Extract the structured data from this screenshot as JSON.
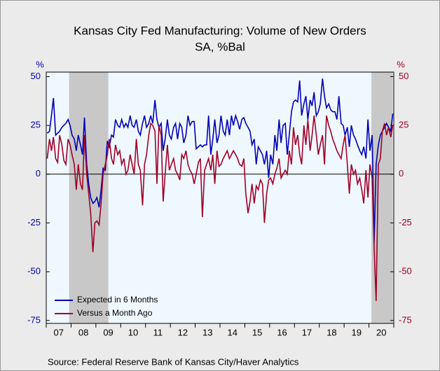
{
  "chart_data": {
    "type": "line",
    "title": "Kansas City Fed Manufacturing: Volume of New Orders",
    "subtitle": "SA, %Bal",
    "y_unit": "%",
    "y2_unit": "%",
    "source": "Source:  Federal Reserve Bank of Kansas City/Haver Analytics",
    "xlim": [
      2007,
      2021
    ],
    "xticks": [
      2007,
      2008,
      2009,
      2010,
      2011,
      2012,
      2013,
      2014,
      2015,
      2016,
      2017,
      2018,
      2019,
      2020,
      2021
    ],
    "xlabels": [
      {
        "value": 2007.5,
        "label": "07"
      },
      {
        "value": 2008.5,
        "label": "08"
      },
      {
        "value": 2009.5,
        "label": "09"
      },
      {
        "value": 2010.5,
        "label": "10"
      },
      {
        "value": 2011.5,
        "label": "11"
      },
      {
        "value": 2012.5,
        "label": "12"
      },
      {
        "value": 2013.5,
        "label": "13"
      },
      {
        "value": 2014.5,
        "label": "14"
      },
      {
        "value": 2015.5,
        "label": "15"
      },
      {
        "value": 2016.5,
        "label": "16"
      },
      {
        "value": 2017.5,
        "label": "17"
      },
      {
        "value": 2018.5,
        "label": "18"
      },
      {
        "value": 2019.5,
        "label": "19"
      },
      {
        "value": 2020.5,
        "label": "20"
      }
    ],
    "ylim": [
      -76.5,
      52.3
    ],
    "yticks": [
      -75,
      -50,
      -25,
      0,
      25,
      50
    ],
    "y2lim": [
      -76.5,
      52.3
    ],
    "y2ticks": [
      -75,
      -50,
      -25,
      0,
      25,
      50
    ],
    "shaded_periods": [
      [
        2007.92,
        2009.5
      ],
      [
        2020.1,
        2020.96
      ]
    ],
    "legend": "lower left",
    "x": [
      2007.04,
      2007.13,
      2007.21,
      2007.29,
      2007.38,
      2007.46,
      2007.54,
      2007.63,
      2007.71,
      2007.79,
      2007.88,
      2007.96,
      2008.04,
      2008.13,
      2008.21,
      2008.29,
      2008.38,
      2008.46,
      2008.54,
      2008.63,
      2008.71,
      2008.79,
      2008.88,
      2008.96,
      2009.04,
      2009.13,
      2009.21,
      2009.29,
      2009.38,
      2009.46,
      2009.54,
      2009.63,
      2009.71,
      2009.79,
      2009.88,
      2009.96,
      2010.04,
      2010.13,
      2010.21,
      2010.29,
      2010.38,
      2010.46,
      2010.54,
      2010.63,
      2010.71,
      2010.79,
      2010.88,
      2010.96,
      2011.04,
      2011.13,
      2011.21,
      2011.29,
      2011.38,
      2011.46,
      2011.54,
      2011.63,
      2011.71,
      2011.79,
      2011.88,
      2011.96,
      2012.04,
      2012.13,
      2012.21,
      2012.29,
      2012.38,
      2012.46,
      2012.54,
      2012.63,
      2012.71,
      2012.79,
      2012.88,
      2012.96,
      2013.04,
      2013.13,
      2013.21,
      2013.29,
      2013.38,
      2013.46,
      2013.54,
      2013.63,
      2013.71,
      2013.79,
      2013.88,
      2013.96,
      2014.04,
      2014.13,
      2014.21,
      2014.29,
      2014.38,
      2014.46,
      2014.54,
      2014.63,
      2014.71,
      2014.79,
      2014.88,
      2014.96,
      2015.04,
      2015.13,
      2015.21,
      2015.29,
      2015.38,
      2015.46,
      2015.54,
      2015.63,
      2015.71,
      2015.79,
      2015.88,
      2015.96,
      2016.04,
      2016.13,
      2016.21,
      2016.29,
      2016.38,
      2016.46,
      2016.54,
      2016.63,
      2016.71,
      2016.79,
      2016.88,
      2016.96,
      2017.04,
      2017.13,
      2017.21,
      2017.29,
      2017.38,
      2017.46,
      2017.54,
      2017.63,
      2017.71,
      2017.79,
      2017.88,
      2017.96,
      2018.04,
      2018.13,
      2018.21,
      2018.29,
      2018.38,
      2018.46,
      2018.54,
      2018.63,
      2018.71,
      2018.79,
      2018.88,
      2018.96,
      2019.04,
      2019.13,
      2019.21,
      2019.29,
      2019.38,
      2019.46,
      2019.54,
      2019.63,
      2019.71,
      2019.79,
      2019.88,
      2019.96,
      2020.04,
      2020.13,
      2020.21,
      2020.29,
      2020.38,
      2020.46,
      2020.54,
      2020.63,
      2020.71,
      2020.79,
      2020.88,
      2020.96
    ],
    "series": [
      {
        "name": "Expected in 6 Months",
        "color": "#0000b4",
        "axis": "y",
        "values": [
          21,
          22,
          30,
          39,
          20,
          21,
          22,
          24,
          25,
          26,
          28,
          25,
          20,
          18,
          12,
          20,
          15,
          10,
          29,
          5,
          -5,
          -12,
          -15,
          -14,
          -12,
          -17,
          -8,
          3,
          2,
          17,
          14,
          20,
          19,
          28,
          25,
          24,
          28,
          24,
          26,
          24,
          30,
          25,
          24,
          28,
          22,
          20,
          26,
          30,
          24,
          26,
          30,
          26,
          38,
          28,
          24,
          26,
          12,
          18,
          28,
          20,
          18,
          24,
          26,
          18,
          26,
          24,
          16,
          20,
          30,
          25,
          27,
          27,
          13,
          14,
          15,
          14,
          15,
          15,
          30,
          10,
          18,
          28,
          16,
          20,
          30,
          22,
          20,
          28,
          20,
          30,
          25,
          30,
          27,
          23,
          28,
          29,
          26,
          24,
          22,
          15,
          18,
          5,
          14,
          12,
          10,
          5,
          12,
          -2,
          10,
          5,
          20,
          12,
          28,
          16,
          25,
          26,
          10,
          20,
          32,
          37,
          38,
          37,
          48,
          30,
          36,
          40,
          28,
          38,
          35,
          42,
          30,
          32,
          36,
          49,
          40,
          34,
          36,
          33,
          32,
          32,
          28,
          40,
          26,
          25,
          20,
          24,
          14,
          25,
          20,
          18,
          15,
          12,
          10,
          14,
          8,
          28,
          12,
          20,
          -35,
          5,
          15,
          20,
          22,
          24,
          26,
          24,
          22,
          31
        ]
      },
      {
        "name": "Versus a Month Ago",
        "color": "#a00028",
        "axis": "y2",
        "values": [
          8,
          18,
          12,
          19,
          8,
          6,
          20,
          15,
          7,
          5,
          18,
          15,
          10,
          5,
          -8,
          5,
          -5,
          -8,
          20,
          0,
          -10,
          -20,
          -40,
          -25,
          -24,
          -26,
          -15,
          0,
          5,
          10,
          18,
          8,
          5,
          15,
          10,
          12,
          5,
          8,
          0,
          2,
          10,
          5,
          0,
          18,
          5,
          2,
          -16,
          5,
          10,
          20,
          26,
          25,
          22,
          -5,
          25,
          20,
          -14,
          0,
          15,
          2,
          5,
          8,
          2,
          0,
          -3,
          10,
          8,
          12,
          5,
          2,
          0,
          -5,
          0,
          6,
          8,
          -22,
          2,
          5,
          8,
          2,
          10,
          -5,
          12,
          4,
          5,
          8,
          10,
          12,
          8,
          10,
          12,
          10,
          8,
          5,
          4,
          8,
          -10,
          -20,
          -14,
          -5,
          -15,
          -6,
          -8,
          -3,
          -5,
          -25,
          -10,
          -3,
          -2,
          -5,
          0,
          3,
          8,
          -2,
          0,
          2,
          0,
          12,
          5,
          24,
          15,
          20,
          10,
          5,
          25,
          15,
          28,
          12,
          20,
          30,
          20,
          10,
          15,
          20,
          5,
          30,
          25,
          22,
          18,
          15,
          12,
          10,
          8,
          15,
          20,
          5,
          -10,
          5,
          0,
          2,
          -5,
          -2,
          -8,
          -15,
          2,
          -12,
          5,
          -2,
          -38,
          -65,
          5,
          8,
          22,
          26,
          20,
          24,
          19,
          25
        ]
      }
    ]
  }
}
